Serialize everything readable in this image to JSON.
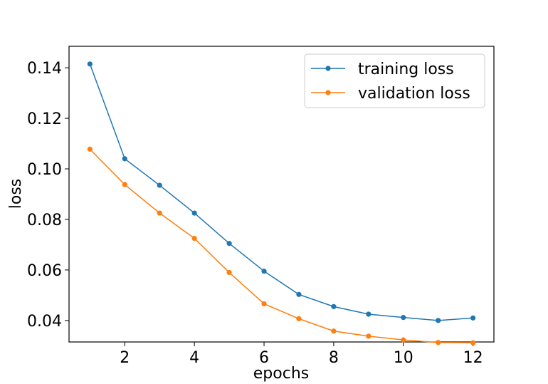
{
  "chart_data": {
    "type": "line",
    "xlabel": "epochs",
    "ylabel": "loss",
    "x": [
      1,
      2,
      3,
      4,
      5,
      6,
      7,
      8,
      9,
      10,
      11,
      12
    ],
    "xlim": [
      0.4,
      12.6
    ],
    "ylim": [
      0.0315,
      0.1485
    ],
    "xticks": [
      2,
      4,
      6,
      8,
      10,
      12
    ],
    "yticks": [
      0.04,
      0.06,
      0.08,
      0.1,
      0.12,
      0.14
    ],
    "xtick_labels": [
      "2",
      "4",
      "6",
      "8",
      "10",
      "12"
    ],
    "ytick_labels": [
      "0.04",
      "0.06",
      "0.08",
      "0.10",
      "0.12",
      "0.14"
    ],
    "grid": false,
    "legend_position": "top-right",
    "series": [
      {
        "name": "training loss",
        "color": "#1f77b4",
        "marker": "circle",
        "values": [
          0.1415,
          0.104,
          0.0935,
          0.0825,
          0.0705,
          0.0595,
          0.0503,
          0.0455,
          0.0425,
          0.0412,
          0.04,
          0.041
        ]
      },
      {
        "name": "validation loss",
        "color": "#ff7f0e",
        "marker": "circle",
        "values": [
          0.1078,
          0.0938,
          0.0825,
          0.0725,
          0.059,
          0.0466,
          0.0407,
          0.0358,
          0.0338,
          0.0323,
          0.0313,
          0.0312
        ]
      }
    ]
  }
}
